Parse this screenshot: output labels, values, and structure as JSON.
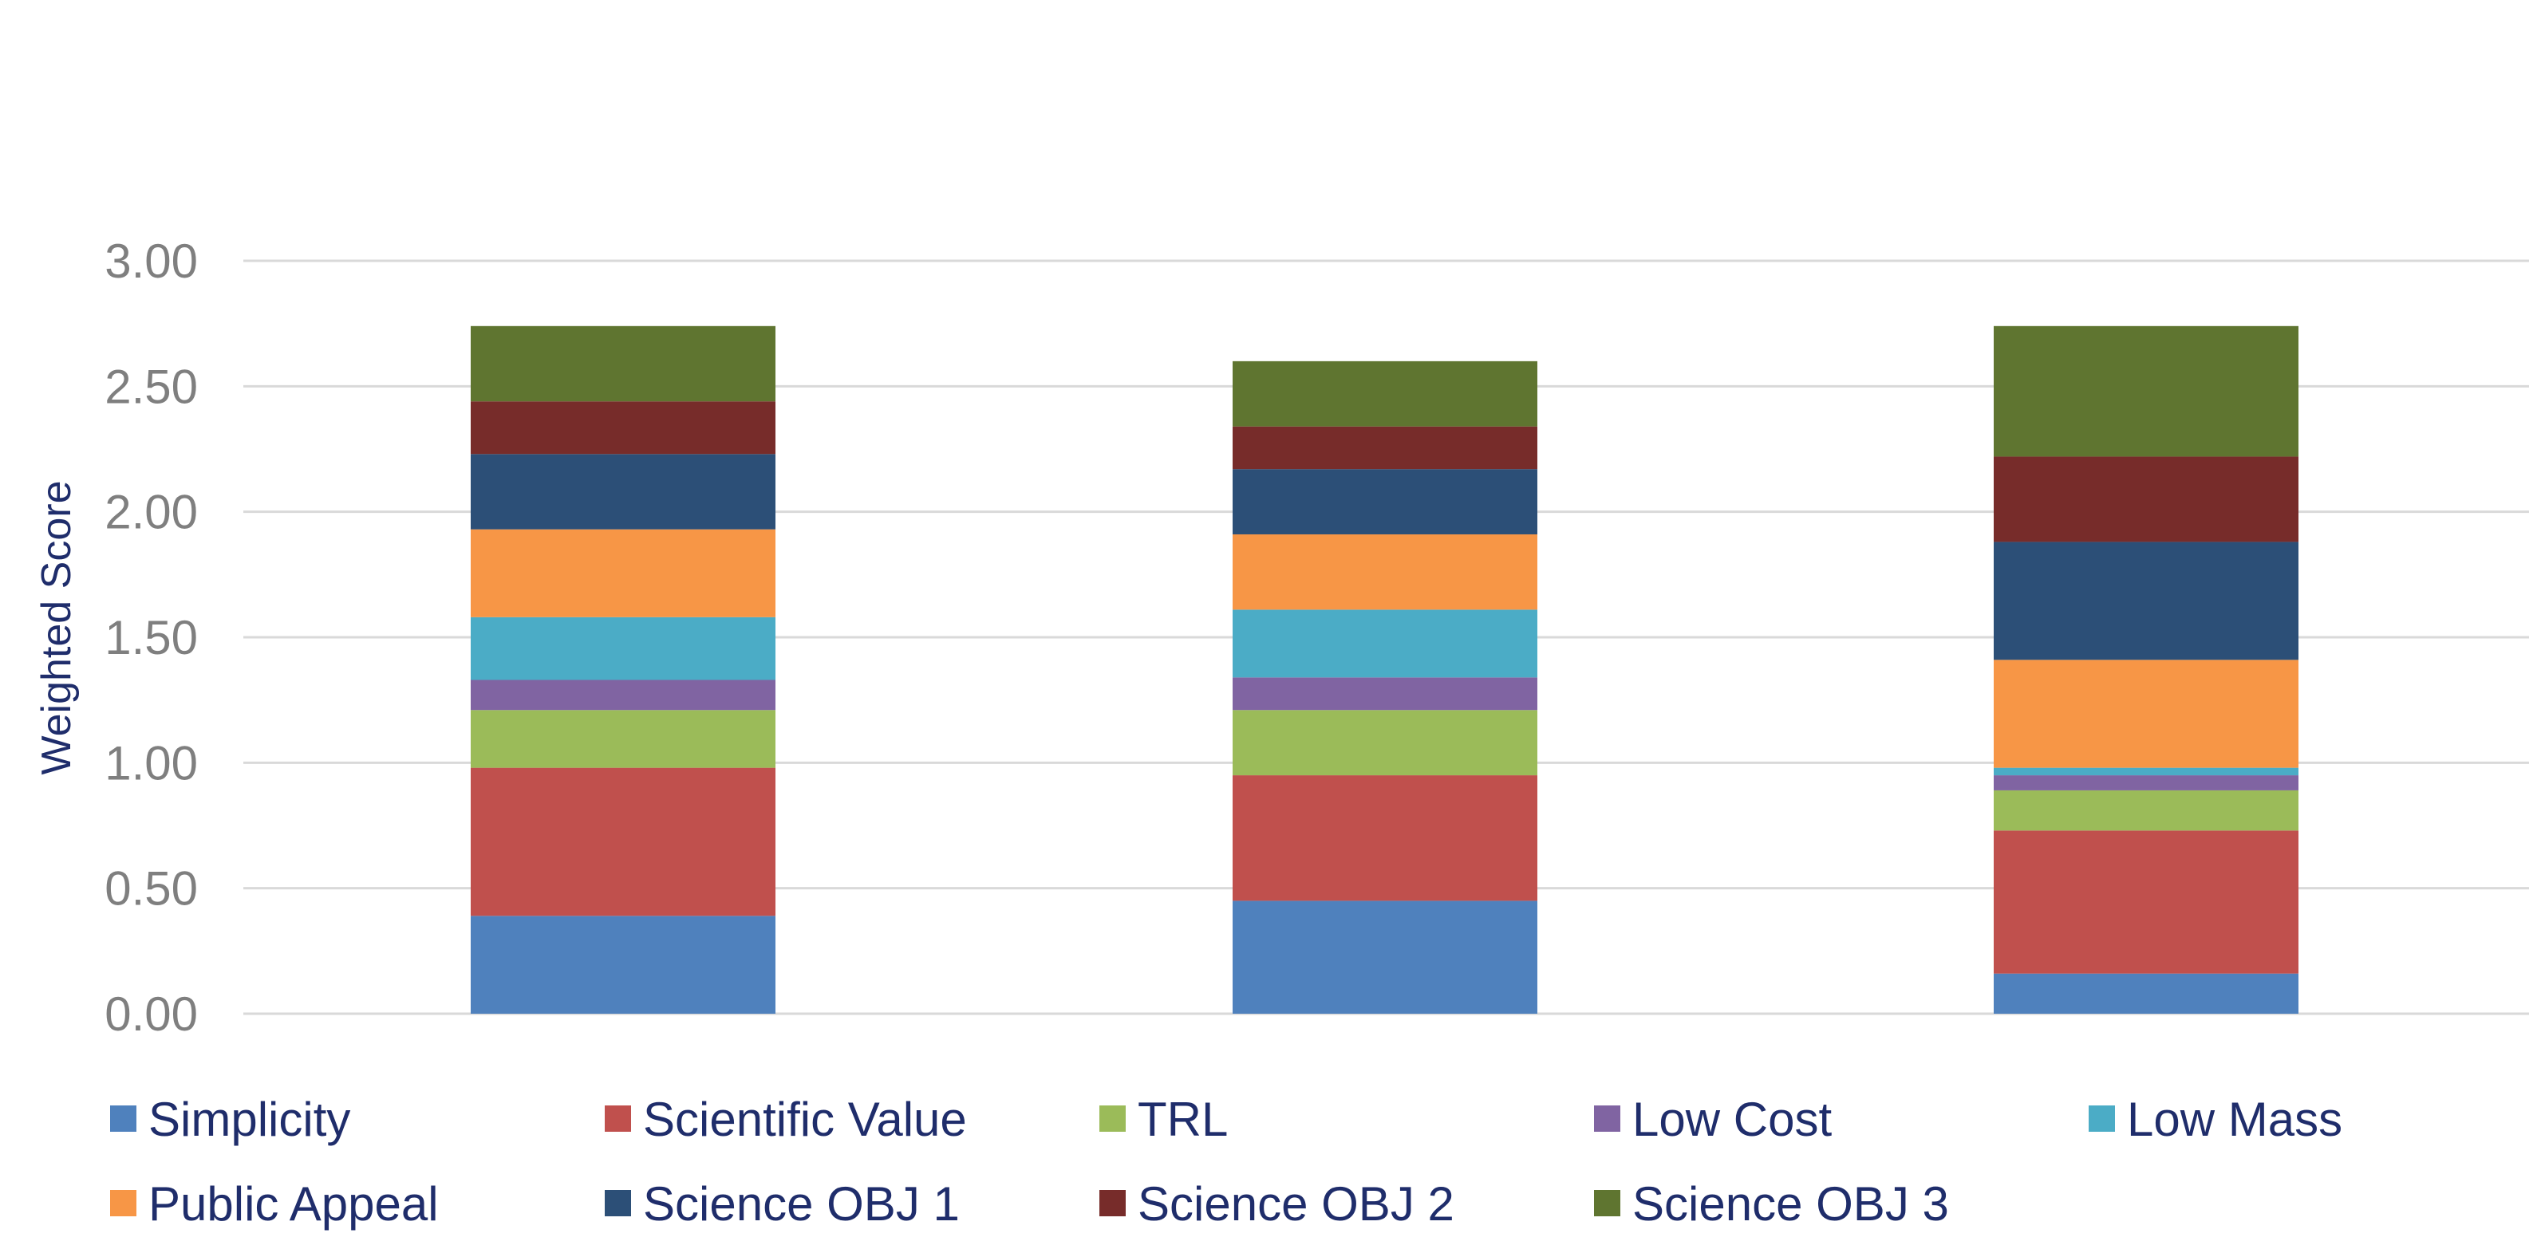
{
  "chart_data": {
    "type": "bar",
    "stacked": true,
    "categories": [
      "",
      "",
      ""
    ],
    "ylabel": "Weighted Score",
    "xlabel": "",
    "title": "",
    "ylim": [
      0,
      3
    ],
    "yticks": [
      "0.00",
      "0.50",
      "1.00",
      "1.50",
      "2.00",
      "2.50",
      "3.00"
    ],
    "grid": true,
    "legend_position": "bottom",
    "series": [
      {
        "name": "Simplicity",
        "color": "#4f81bd",
        "values": [
          0.39,
          0.45,
          0.16
        ]
      },
      {
        "name": "Scientific Value",
        "color": "#c0504d",
        "values": [
          0.59,
          0.5,
          0.57
        ]
      },
      {
        "name": "TRL",
        "color": "#9bbb59",
        "values": [
          0.23,
          0.26,
          0.16
        ]
      },
      {
        "name": "Low Cost",
        "color": "#8064a2",
        "values": [
          0.12,
          0.13,
          0.06
        ]
      },
      {
        "name": "Low Mass",
        "color": "#4bacc6",
        "values": [
          0.25,
          0.27,
          0.03
        ]
      },
      {
        "name": "Public Appeal",
        "color": "#f79646",
        "values": [
          0.35,
          0.3,
          0.43
        ]
      },
      {
        "name": "Science OBJ 1",
        "color": "#2c4f77",
        "values": [
          0.3,
          0.26,
          0.47
        ]
      },
      {
        "name": "Science OBJ 2",
        "color": "#772c2a",
        "values": [
          0.21,
          0.17,
          0.34
        ]
      },
      {
        "name": "Science OBJ 3",
        "color": "#5f7530",
        "values": [
          0.3,
          0.26,
          0.52
        ]
      }
    ]
  }
}
